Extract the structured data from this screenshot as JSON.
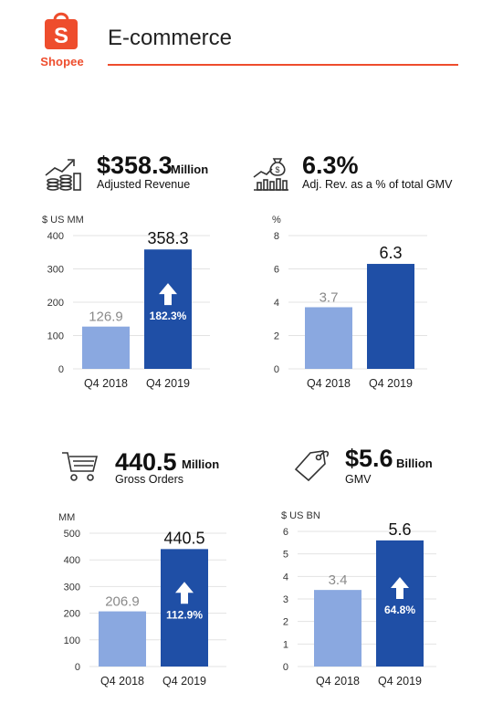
{
  "header": {
    "brand": "Shopee",
    "title": "E-commerce"
  },
  "colors": {
    "brand": "#ee4d2d",
    "bar_old": "#8aa8e0",
    "bar_new": "#1f4fa6",
    "grid": "#e3e3e3"
  },
  "kpis": [
    {
      "value": "$358.3",
      "unit": "Million",
      "caption": "Adjusted Revenue",
      "icon": "rising-revenue-chart-icon"
    },
    {
      "value": "6.3%",
      "unit": "",
      "caption": "Adj. Rev. as a % of total GMV",
      "icon": "money-bag-growth-icon"
    },
    {
      "value": "440.5",
      "unit": "Million",
      "caption": "Gross Orders",
      "icon": "shopping-cart-icon"
    },
    {
      "value": "$5.6",
      "unit": "Billion",
      "caption": "GMV",
      "icon": "price-tag-icon"
    }
  ],
  "chart_data": [
    {
      "type": "bar",
      "unit_label": "$ US MM",
      "categories": [
        "Q4 2018",
        "Q4 2019"
      ],
      "values": [
        126.9,
        358.3
      ],
      "value_labels": [
        "126.9",
        "358.3"
      ],
      "ylim": [
        0,
        400
      ],
      "yticks": [
        0,
        100,
        200,
        300,
        400
      ],
      "growth": "182.3%"
    },
    {
      "type": "bar",
      "unit_label": "%",
      "categories": [
        "Q4 2018",
        "Q4 2019"
      ],
      "values": [
        3.7,
        6.3
      ],
      "value_labels": [
        "3.7",
        "6.3"
      ],
      "ylim": [
        0,
        8
      ],
      "yticks": [
        0,
        2,
        4,
        6,
        8
      ],
      "growth": ""
    },
    {
      "type": "bar",
      "unit_label": "MM",
      "categories": [
        "Q4 2018",
        "Q4 2019"
      ],
      "values": [
        206.9,
        440.5
      ],
      "value_labels": [
        "206.9",
        "440.5"
      ],
      "ylim": [
        0,
        500
      ],
      "yticks": [
        0,
        100,
        200,
        300,
        400,
        500
      ],
      "growth": "112.9%"
    },
    {
      "type": "bar",
      "unit_label": "$ US BN",
      "categories": [
        "Q4 2018",
        "Q4 2019"
      ],
      "values": [
        3.4,
        5.6
      ],
      "value_labels": [
        "3.4",
        "5.6"
      ],
      "ylim": [
        0,
        6
      ],
      "yticks": [
        0,
        1,
        2,
        3,
        4,
        5,
        6
      ],
      "growth": "64.8%"
    }
  ]
}
